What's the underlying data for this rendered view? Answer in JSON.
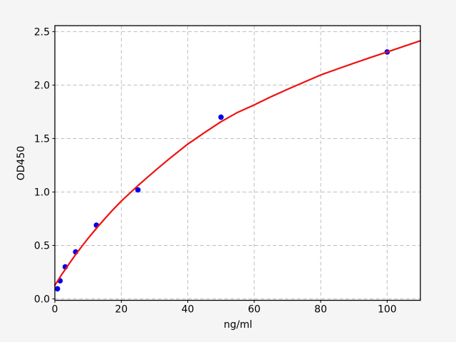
{
  "figure": {
    "background": "#f5f5f5",
    "plot_background": "#ffffff",
    "spine_color": "#000000",
    "grid_color": "#bdbdbd",
    "tick_color": "#000000",
    "text_color": "#000000"
  },
  "chart_data": {
    "type": "scatter",
    "title": "",
    "xlabel": "ng/ml",
    "ylabel": "OD450",
    "xlim": [
      0,
      110
    ],
    "ylim": [
      -0.013,
      2.556
    ],
    "x_ticks": [
      0,
      20,
      40,
      60,
      80,
      100
    ],
    "x_tick_labels": [
      "0",
      "20",
      "40",
      "60",
      "80",
      "100"
    ],
    "y_ticks": [
      0,
      0.5,
      1.0,
      1.5,
      2.0,
      2.5
    ],
    "y_tick_labels": [
      "0.0",
      "0.5",
      "1.0",
      "1.5",
      "2.0",
      "2.5"
    ],
    "grid": "dashed",
    "legend": "none",
    "series": [
      {
        "name": "standard-points",
        "type": "scatter",
        "color": "#0000ee",
        "marker": "circle",
        "x": [
          0.78,
          1.56,
          3.12,
          6.25,
          12.5,
          25,
          50,
          100
        ],
        "y": [
          0.095,
          0.17,
          0.3,
          0.44,
          0.69,
          1.02,
          1.7,
          2.31
        ]
      },
      {
        "name": "fit-curve",
        "type": "line",
        "color": "#ee1111",
        "x": [
          0,
          2,
          4,
          6,
          8,
          10,
          12.5,
          15,
          17.5,
          20,
          25,
          30,
          35,
          40,
          45,
          50,
          55,
          60,
          65,
          70,
          75,
          80,
          85,
          90,
          95,
          100,
          105,
          110
        ],
        "y": [
          0.127,
          0.225,
          0.316,
          0.404,
          0.487,
          0.566,
          0.66,
          0.75,
          0.835,
          0.915,
          1.06,
          1.195,
          1.325,
          1.448,
          1.555,
          1.658,
          1.745,
          1.815,
          1.89,
          1.96,
          2.028,
          2.095,
          2.15,
          2.205,
          2.258,
          2.31,
          2.362,
          2.415
        ]
      }
    ]
  }
}
